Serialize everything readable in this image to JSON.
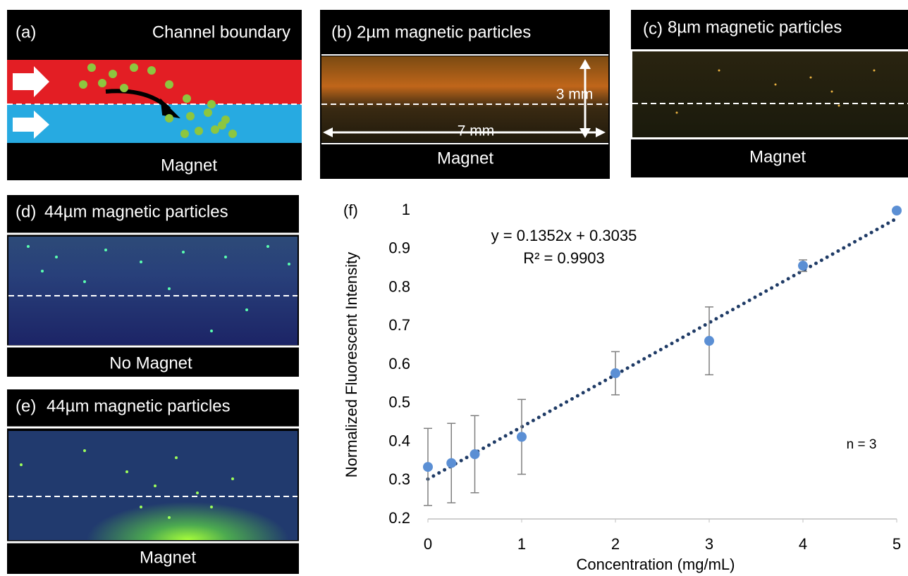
{
  "panels": [
    {
      "label": "(a)",
      "title": "Channel boundary",
      "bottom": "Magnet"
    },
    {
      "label": "(b)",
      "title": "2µm magnetic particles",
      "bottom": "Magnet",
      "scale_labels": [
        "3 mm",
        "7 mm"
      ]
    },
    {
      "label": "(c)",
      "title": "8µm magnetic particles",
      "bottom": "Magnet"
    },
    {
      "label": "(d)",
      "title": "44µm magnetic particles",
      "bottom": "No Magnet"
    },
    {
      "label": "(e)",
      "title": "44µm magnetic particles",
      "bottom": "Magnet"
    }
  ],
  "chart_data": {
    "type": "scatter",
    "panel_label": "(f)",
    "x_label": "Concentration (mg/mL)",
    "y_label": "Normalized Fluorescent Intensity",
    "annotations": [
      "y = 0.1352x + 0.3035",
      "R² = 0.9903",
      "n = 3"
    ],
    "trendline": {
      "slope": 0.1352,
      "intercept": 0.3035,
      "color": "#1f3b66"
    },
    "x": [
      0,
      0.25,
      0.5,
      1,
      2,
      3,
      4,
      5
    ],
    "series": [
      {
        "color": "#5b8fd4",
        "values": [
          0.335,
          0.345,
          0.368,
          0.413,
          0.578,
          0.662,
          0.857,
          1.0
        ],
        "errors": [
          0.1,
          0.103,
          0.1,
          0.097,
          0.056,
          0.088,
          0.015,
          0
        ]
      }
    ],
    "xlim": [
      0,
      5
    ],
    "xticks": [
      0,
      1,
      2,
      3,
      4,
      5
    ],
    "ylim": [
      0.2,
      1
    ],
    "yticks": [
      0.2,
      0.3,
      0.4,
      0.5,
      0.6,
      0.7,
      0.8,
      0.9,
      1
    ]
  }
}
